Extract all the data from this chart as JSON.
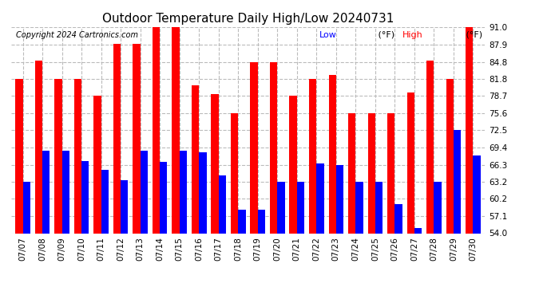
{
  "title": "Outdoor Temperature Daily High/Low 20240731",
  "copyright": "Copyright 2024 Cartronics.com",
  "dates": [
    "07/07",
    "07/08",
    "07/09",
    "07/10",
    "07/11",
    "07/12",
    "07/13",
    "07/14",
    "07/15",
    "07/16",
    "07/17",
    "07/18",
    "07/19",
    "07/20",
    "07/21",
    "07/22",
    "07/23",
    "07/24",
    "07/25",
    "07/26",
    "07/27",
    "07/28",
    "07/29",
    "07/30"
  ],
  "highs": [
    81.8,
    85.0,
    81.8,
    81.8,
    78.7,
    88.0,
    88.0,
    91.0,
    91.0,
    80.6,
    79.0,
    75.6,
    84.8,
    84.8,
    78.7,
    81.8,
    82.5,
    75.6,
    75.6,
    75.6,
    79.3,
    85.0,
    81.8,
    91.0
  ],
  "lows": [
    63.2,
    68.8,
    68.8,
    67.0,
    65.4,
    63.5,
    68.8,
    66.8,
    68.8,
    68.5,
    64.4,
    58.3,
    58.3,
    63.2,
    63.2,
    66.5,
    66.3,
    63.2,
    63.2,
    59.2,
    55.0,
    63.2,
    72.5,
    68.0
  ],
  "ylim_min": 54.0,
  "ylim_max": 91.0,
  "yticks": [
    54.0,
    57.1,
    60.2,
    63.2,
    66.3,
    69.4,
    72.5,
    75.6,
    78.7,
    81.8,
    84.8,
    87.9,
    91.0
  ],
  "bar_width": 0.38,
  "high_color": "#ff0000",
  "low_color": "#0000ff",
  "bg_color": "#ffffff",
  "grid_color": "#bbbbbb",
  "title_fontsize": 11,
  "copyright_fontsize": 7,
  "legend_fontsize": 8,
  "tick_fontsize": 7.5
}
